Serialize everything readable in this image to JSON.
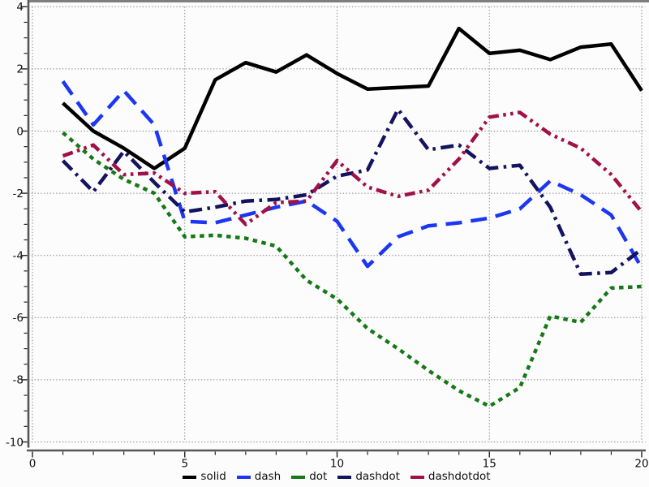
{
  "chart_data": {
    "type": "line",
    "title": "",
    "xlabel": "",
    "ylabel": "",
    "x": [
      1,
      2,
      3,
      4,
      5,
      6,
      7,
      8,
      9,
      10,
      11,
      12,
      13,
      14,
      15,
      16,
      17,
      18,
      19,
      20
    ],
    "series": [
      {
        "name": "solid",
        "color": "#000000",
        "dash_style": "solid",
        "values": [
          0.9,
          0.0,
          -0.55,
          -1.2,
          -0.55,
          1.65,
          2.2,
          1.9,
          2.45,
          1.85,
          1.35,
          1.4,
          1.45,
          3.3,
          2.5,
          2.6,
          2.3,
          2.7,
          2.8,
          1.3
        ]
      },
      {
        "name": "dash",
        "color": "#1c36f2",
        "dash_style": "dash",
        "values": [
          1.6,
          0.2,
          1.3,
          0.2,
          -2.9,
          -2.95,
          -2.7,
          -2.45,
          -2.25,
          -2.9,
          -4.35,
          -3.4,
          -3.05,
          -2.95,
          -2.8,
          -2.5,
          -1.6,
          -2.05,
          -2.7,
          -4.4
        ]
      },
      {
        "name": "dot",
        "color": "#177817",
        "dash_style": "dot",
        "values": [
          -0.05,
          -0.9,
          -1.55,
          -2.0,
          -3.4,
          -3.35,
          -3.45,
          -3.7,
          -4.8,
          -5.4,
          -6.35,
          -7.0,
          -7.7,
          -8.35,
          -8.85,
          -8.25,
          -5.95,
          -6.15,
          -5.05,
          -5.0
        ]
      },
      {
        "name": "dashdot",
        "color": "#14145e",
        "dash_style": "dashdot",
        "values": [
          -0.95,
          -1.95,
          -0.65,
          -1.65,
          -2.6,
          -2.45,
          -2.25,
          -2.2,
          -2.05,
          -1.45,
          -1.25,
          0.7,
          -0.6,
          -0.45,
          -1.2,
          -1.1,
          -2.45,
          -4.6,
          -4.55,
          -3.8
        ]
      },
      {
        "name": "dashdotdot",
        "color": "#a01146",
        "dash_style": "dashdotdot",
        "values": [
          -0.8,
          -0.45,
          -1.4,
          -1.35,
          -2.0,
          -1.95,
          -3.0,
          -2.3,
          -2.25,
          -0.95,
          -1.8,
          -2.1,
          -1.9,
          -0.9,
          0.45,
          0.6,
          -0.1,
          -0.55,
          -1.4,
          -2.6
        ]
      }
    ],
    "xlim": [
      0,
      20
    ],
    "ylim": [
      -10,
      4
    ],
    "x_ticks": [
      0,
      5,
      10,
      15,
      20
    ],
    "y_ticks": [
      4,
      2,
      0,
      -2,
      -4,
      -6,
      -8,
      -10
    ],
    "x_tick_labels": [
      "0",
      "5",
      "10",
      "15",
      "20"
    ],
    "y_tick_labels": [
      "4",
      "2",
      "0",
      "-2",
      "-4",
      "-6",
      "-8",
      "-10"
    ],
    "x_minor_step": 1,
    "y_minor_step": 0.5,
    "grid": "dotted",
    "legend_position": "bottom-center"
  },
  "colors": {
    "background": "#fcfcfc",
    "grid": "#858585",
    "axis_spine": "#565656",
    "top_border": "#7e7e7e",
    "tick": "#222222",
    "tick_label": "#111111"
  }
}
